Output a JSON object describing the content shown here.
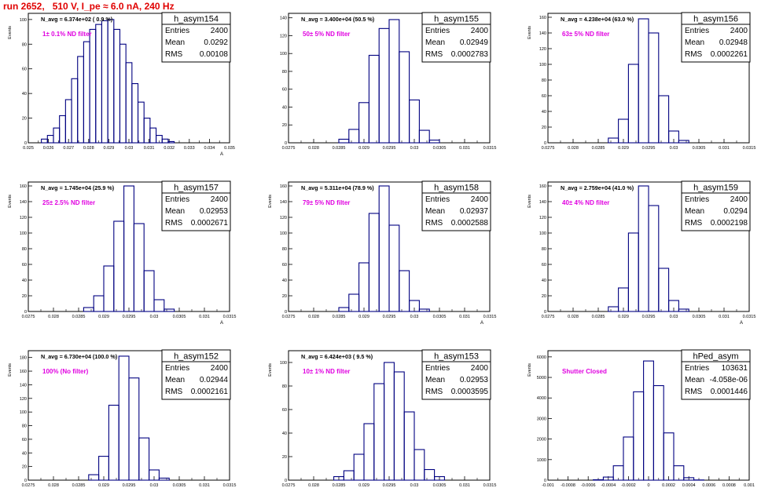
{
  "page_title": "run 2652,   510 V, I_pe ≈ 6.0 nA, 240 Hz",
  "colors": {
    "histogram": "#000080",
    "annotation": "#e000e0",
    "title": "#e00000",
    "frame": "#000000"
  },
  "chart_data": [
    {
      "type": "histogram",
      "name": "h_asym154",
      "stats": {
        "entries_label": "Entries",
        "entries": "2400",
        "mean_label": "Mean",
        "mean": "0.0292",
        "rms_label": "RMS",
        "rms": "0.00108"
      },
      "navg_text": "N_avg = 6.374e+02 ( 0.9 %)",
      "note": "1± 0.1% ND filter",
      "ylabel": "Events",
      "xlabel": "A",
      "xlim": [
        0.025,
        0.035
      ],
      "ylim": [
        0,
        105
      ],
      "xticks": [
        0.025,
        0.026,
        0.027,
        0.028,
        0.029,
        0.03,
        0.031,
        0.032,
        0.033,
        0.034,
        0.035
      ],
      "xtick_labels": [
        "0.025",
        "0.026",
        "0.027",
        "0.028",
        "0.029",
        "0.03",
        "0.031",
        "0.032",
        "0.033",
        "0.034",
        "0.035"
      ],
      "yticks": [
        0,
        20,
        40,
        60,
        80,
        100
      ],
      "ytick_labels": [
        "0",
        "20",
        "40",
        "60",
        "80",
        "100"
      ],
      "x": [
        0.0258,
        0.0261,
        0.0264,
        0.0267,
        0.027,
        0.0273,
        0.0276,
        0.0279,
        0.0282,
        0.0285,
        0.0288,
        0.0291,
        0.0294,
        0.0297,
        0.03,
        0.0303,
        0.0306,
        0.0309,
        0.0312,
        0.0315,
        0.0318,
        0.0321
      ],
      "y": [
        3,
        6,
        12,
        22,
        35,
        52,
        70,
        82,
        92,
        96,
        99,
        100,
        92,
        80,
        65,
        48,
        33,
        20,
        12,
        6,
        3,
        1
      ]
    },
    {
      "type": "histogram",
      "name": "h_asym155",
      "stats": {
        "entries_label": "Entries",
        "entries": "2400",
        "mean_label": "Mean",
        "mean": "0.02949",
        "rms_label": "RMS",
        "rms": "0.0002783"
      },
      "navg_text": "N_avg = 3.400e+04 (50.5 %)",
      "note": "50± 5% ND filter",
      "ylabel": "",
      "xlabel": "",
      "xlim": [
        0.0275,
        0.0315
      ],
      "ylim": [
        0,
        145
      ],
      "xticks": [
        0.0275,
        0.028,
        0.0285,
        0.029,
        0.0295,
        0.03,
        0.0305,
        0.031,
        0.0315
      ],
      "xtick_labels": [
        "0.0275",
        "0.028",
        "0.0285",
        "0.029",
        "0.0295",
        "0.03",
        "0.0305",
        "0.031",
        "0.0315"
      ],
      "yticks": [
        0,
        20,
        40,
        60,
        80,
        100,
        120,
        140
      ],
      "ytick_labels": [
        "0",
        "20",
        "40",
        "60",
        "80",
        "100",
        "120",
        "140"
      ],
      "x": [
        0.0286,
        0.0288,
        0.029,
        0.0292,
        0.0294,
        0.0296,
        0.0298,
        0.03,
        0.0302,
        0.0304
      ],
      "y": [
        4,
        15,
        45,
        98,
        128,
        138,
        102,
        48,
        14,
        3
      ]
    },
    {
      "type": "histogram",
      "name": "h_asym156",
      "stats": {
        "entries_label": "Entries",
        "entries": "2400",
        "mean_label": "Mean",
        "mean": "0.02948",
        "rms_label": "RMS",
        "rms": "0.0002261"
      },
      "navg_text": "N_avg = 4.238e+04 (63.0 %)",
      "note": "63± 5% ND filter",
      "ylabel": "Events",
      "xlabel": "",
      "xlim": [
        0.0275,
        0.0315
      ],
      "ylim": [
        0,
        165
      ],
      "xticks": [
        0.0275,
        0.028,
        0.0285,
        0.029,
        0.0295,
        0.03,
        0.0305,
        0.031,
        0.0315
      ],
      "xtick_labels": [
        "0.0275",
        "0.028",
        "0.0285",
        "0.029",
        "0.0295",
        "0.03",
        "0.0305",
        "0.031",
        "0.0315"
      ],
      "yticks": [
        0,
        20,
        40,
        60,
        80,
        100,
        120,
        140,
        160
      ],
      "ytick_labels": [
        "0",
        "20",
        "40",
        "60",
        "80",
        "100",
        "120",
        "140",
        "160"
      ],
      "x": [
        0.0288,
        0.029,
        0.0292,
        0.0294,
        0.0296,
        0.0298,
        0.03,
        0.0302
      ],
      "y": [
        6,
        30,
        100,
        158,
        140,
        60,
        15,
        3
      ]
    },
    {
      "type": "histogram",
      "name": "h_asym157",
      "stats": {
        "entries_label": "Entries",
        "entries": "2400",
        "mean_label": "Mean",
        "mean": "0.02953",
        "rms_label": "RMS",
        "rms": "0.0002671"
      },
      "navg_text": "N_avg = 1.745e+04 (25.9 %)",
      "note": "25± 2.5% ND filter",
      "ylabel": "Events",
      "xlabel": "A",
      "xlim": [
        0.0275,
        0.0315
      ],
      "ylim": [
        0,
        165
      ],
      "xticks": [
        0.0275,
        0.028,
        0.0285,
        0.029,
        0.0295,
        0.03,
        0.0305,
        0.031,
        0.0315
      ],
      "xtick_labels": [
        "0.0275",
        "0.028",
        "0.0285",
        "0.029",
        "0.0295",
        "0.03",
        "0.0305",
        "0.031",
        "0.0315"
      ],
      "yticks": [
        0,
        20,
        40,
        60,
        80,
        100,
        120,
        140,
        160
      ],
      "ytick_labels": [
        "0",
        "20",
        "40",
        "60",
        "80",
        "100",
        "120",
        "140",
        "160"
      ],
      "x": [
        0.0287,
        0.0289,
        0.0291,
        0.0293,
        0.0295,
        0.0297,
        0.0299,
        0.0301,
        0.0303
      ],
      "y": [
        5,
        20,
        58,
        115,
        160,
        112,
        52,
        15,
        3
      ]
    },
    {
      "type": "histogram",
      "name": "h_asym158",
      "stats": {
        "entries_label": "Entries",
        "entries": "2400",
        "mean_label": "Mean",
        "mean": "0.02937",
        "rms_label": "RMS",
        "rms": "0.0002588"
      },
      "navg_text": "N_avg = 5.311e+04 (78.9 %)",
      "note": "79± 5% ND filter",
      "ylabel": "Events",
      "xlabel": "A",
      "xlim": [
        0.0275,
        0.0315
      ],
      "ylim": [
        0,
        165
      ],
      "xticks": [
        0.0275,
        0.028,
        0.0285,
        0.029,
        0.0295,
        0.03,
        0.0305,
        0.031,
        0.0315
      ],
      "xtick_labels": [
        "0.0275",
        "0.028",
        "0.0285",
        "0.029",
        "0.0295",
        "0.03",
        "0.0305",
        "0.031",
        "0.0315"
      ],
      "yticks": [
        0,
        20,
        40,
        60,
        80,
        100,
        120,
        140,
        160
      ],
      "ytick_labels": [
        "0",
        "20",
        "40",
        "60",
        "80",
        "100",
        "120",
        "140",
        "160"
      ],
      "x": [
        0.0286,
        0.0288,
        0.029,
        0.0292,
        0.0294,
        0.0296,
        0.0298,
        0.03,
        0.0302
      ],
      "y": [
        5,
        22,
        62,
        125,
        160,
        110,
        52,
        14,
        3
      ]
    },
    {
      "type": "histogram",
      "name": "h_asym159",
      "stats": {
        "entries_label": "Entries",
        "entries": "2400",
        "mean_label": "Mean",
        "mean": "0.0294",
        "rms_label": "RMS",
        "rms": "0.0002198"
      },
      "navg_text": "N_avg = 2.759e+04 (41.0 %)",
      "note": "40± 4% ND filter",
      "ylabel": "Events",
      "xlabel": "A",
      "xlim": [
        0.0275,
        0.0315
      ],
      "ylim": [
        0,
        165
      ],
      "xticks": [
        0.0275,
        0.028,
        0.0285,
        0.029,
        0.0295,
        0.03,
        0.0305,
        0.031,
        0.0315
      ],
      "xtick_labels": [
        "0.0275",
        "0.028",
        "0.0285",
        "0.029",
        "0.0295",
        "0.03",
        "0.0305",
        "0.031",
        "0.0315"
      ],
      "yticks": [
        0,
        20,
        40,
        60,
        80,
        100,
        120,
        140,
        160
      ],
      "ytick_labels": [
        "0",
        "20",
        "40",
        "60",
        "80",
        "100",
        "120",
        "140",
        "160"
      ],
      "x": [
        0.0288,
        0.029,
        0.0292,
        0.0294,
        0.0296,
        0.0298,
        0.03,
        0.0302
      ],
      "y": [
        6,
        30,
        100,
        160,
        135,
        55,
        14,
        3
      ]
    },
    {
      "type": "histogram",
      "name": "h_asym152",
      "stats": {
        "entries_label": "Entries",
        "entries": "2400",
        "mean_label": "Mean",
        "mean": "0.02944",
        "rms_label": "RMS",
        "rms": "0.0002161"
      },
      "navg_text": "N_avg = 6.730e+04 (100.0 %)",
      "note": "100% (No filter)",
      "ylabel": "Events",
      "xlabel": "A",
      "xlim": [
        0.0275,
        0.0315
      ],
      "ylim": [
        0,
        190
      ],
      "xticks": [
        0.0275,
        0.028,
        0.0285,
        0.029,
        0.0295,
        0.03,
        0.0305,
        0.031,
        0.0315
      ],
      "xtick_labels": [
        "0.0275",
        "0.028",
        "0.0285",
        "0.029",
        "0.0295",
        "0.03",
        "0.0305",
        "0.031",
        "0.0315"
      ],
      "yticks": [
        0,
        20,
        40,
        60,
        80,
        100,
        120,
        140,
        160,
        180
      ],
      "ytick_labels": [
        "0",
        "20",
        "40",
        "60",
        "80",
        "100",
        "120",
        "140",
        "160",
        "180"
      ],
      "x": [
        0.0288,
        0.029,
        0.0292,
        0.0294,
        0.0296,
        0.0298,
        0.03,
        0.0302
      ],
      "y": [
        8,
        35,
        110,
        182,
        150,
        62,
        15,
        3
      ]
    },
    {
      "type": "histogram",
      "name": "h_asym153",
      "stats": {
        "entries_label": "Entries",
        "entries": "2400",
        "mean_label": "Mean",
        "mean": "0.02953",
        "rms_label": "RMS",
        "rms": "0.0003595"
      },
      "navg_text": "N_avg = 6.424e+03 ( 9.5 %)",
      "note": "10± 1% ND filter",
      "ylabel": "Events",
      "xlabel": "A",
      "xlim": [
        0.0275,
        0.0315
      ],
      "ylim": [
        0,
        110
      ],
      "xticks": [
        0.0275,
        0.028,
        0.0285,
        0.029,
        0.0295,
        0.03,
        0.0305,
        0.031,
        0.0315
      ],
      "xtick_labels": [
        "0.0275",
        "0.028",
        "0.0285",
        "0.029",
        "0.0295",
        "0.03",
        "0.0305",
        "0.031",
        "0.0315"
      ],
      "yticks": [
        0,
        20,
        40,
        60,
        80,
        100
      ],
      "ytick_labels": [
        "0",
        "20",
        "40",
        "60",
        "80",
        "100"
      ],
      "x": [
        0.0285,
        0.0287,
        0.0289,
        0.0291,
        0.0293,
        0.0295,
        0.0297,
        0.0299,
        0.0301,
        0.0303,
        0.0305
      ],
      "y": [
        3,
        8,
        22,
        48,
        82,
        100,
        92,
        58,
        26,
        9,
        3
      ]
    },
    {
      "type": "histogram",
      "name": "hPed_asym",
      "stats": {
        "entries_label": "Entries",
        "entries": "103631",
        "mean_label": "Mean",
        "mean": "-4.058e-06",
        "rms_label": "RMS",
        "rms": "0.0001446"
      },
      "navg_text": "",
      "note": "Shutter Closed",
      "ylabel": "Events",
      "xlabel": "A",
      "xlim": [
        -0.001,
        0.001
      ],
      "ylim": [
        0,
        6300
      ],
      "xticks": [
        -0.001,
        -0.0008,
        -0.0006,
        -0.0004,
        -0.0002,
        0,
        0.0002,
        0.0004,
        0.0006,
        0.0008,
        0.001
      ],
      "xtick_labels": [
        "-0.001",
        "-0.0008",
        "-0.0006",
        "-0.0004",
        "-0.0002",
        "0",
        "0.0002",
        "0.0004",
        "0.0006",
        "0.0008",
        "0.001"
      ],
      "yticks": [
        0,
        1000,
        2000,
        3000,
        4000,
        5000,
        6000
      ],
      "ytick_labels": [
        "0",
        "1000",
        "2000",
        "3000",
        "4000",
        "5000",
        "6000"
      ],
      "x": [
        -0.0005,
        -0.0004,
        -0.0003,
        -0.0002,
        -0.0001,
        0,
        0.0001,
        0.0002,
        0.0003,
        0.0004,
        0.0005
      ],
      "y": [
        20,
        150,
        700,
        2100,
        4300,
        5800,
        4600,
        2300,
        700,
        120,
        10
      ]
    }
  ]
}
